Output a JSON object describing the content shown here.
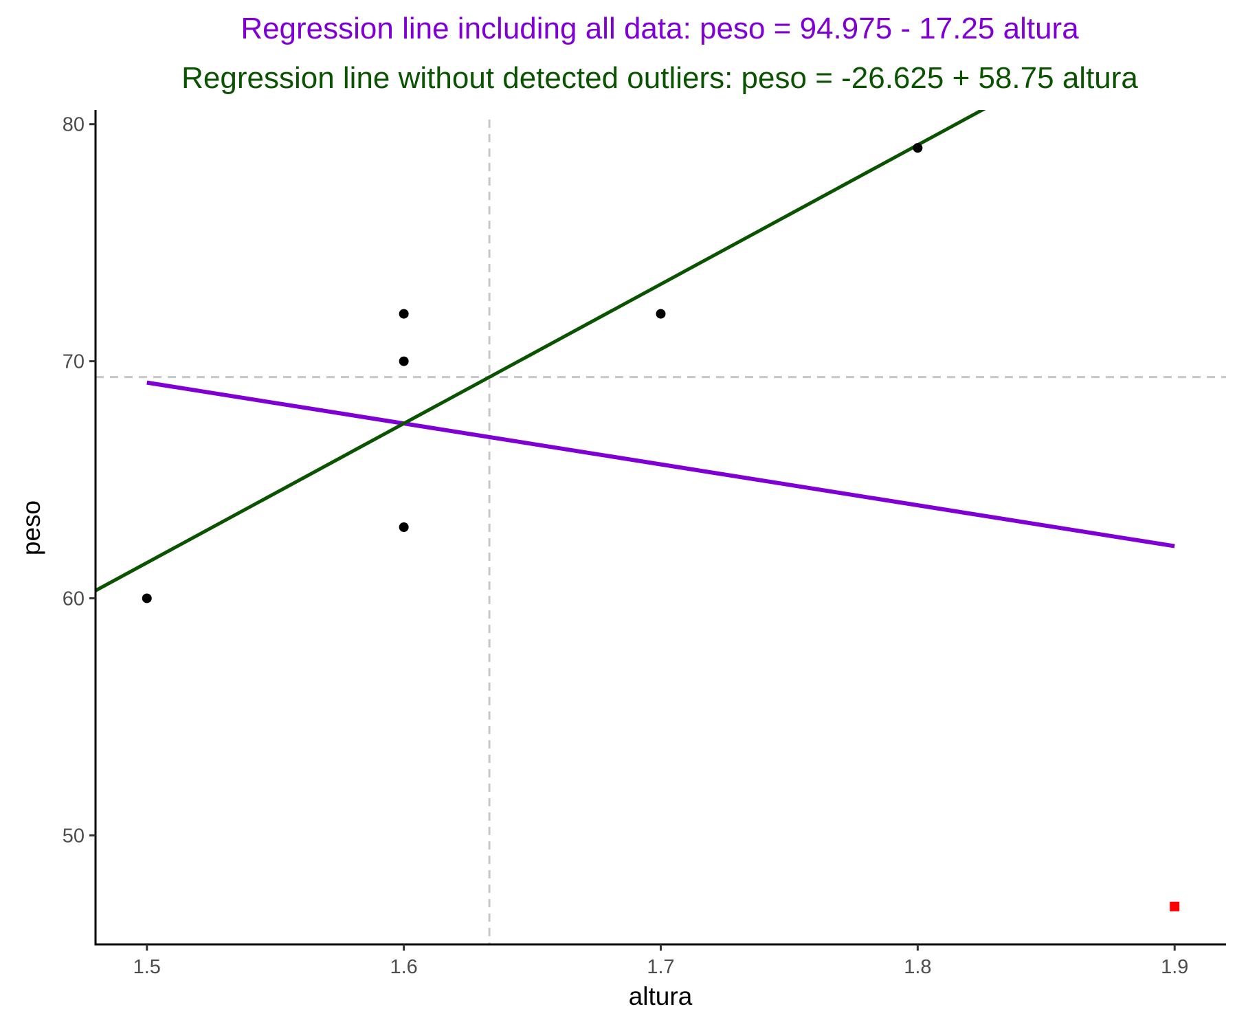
{
  "chart_data": {
    "type": "scatter",
    "title_lines": [
      {
        "text": "Regression line including all data: peso  =  94.975 - 17.25 altura",
        "color": "#8000D4"
      },
      {
        "text": "Regression line without detected outliers: peso  =  -26.625 + 58.75 altura",
        "color": "#0A5300"
      }
    ],
    "xlabel": "altura",
    "ylabel": "peso",
    "xlim": [
      1.48,
      1.92
    ],
    "ylim": [
      45.4,
      80.6
    ],
    "x_ticks": [
      1.5,
      1.6,
      1.7,
      1.8,
      1.9
    ],
    "x_tick_labels": [
      "1.5",
      "1.6",
      "1.7",
      "1.8",
      "1.9"
    ],
    "y_ticks": [
      50,
      60,
      70,
      80
    ],
    "y_tick_labels": [
      "50",
      "60",
      "70",
      "80"
    ],
    "grid": false,
    "points": [
      {
        "x": 1.5,
        "y": 60,
        "outlier": false
      },
      {
        "x": 1.6,
        "y": 72,
        "outlier": false
      },
      {
        "x": 1.6,
        "y": 70,
        "outlier": false
      },
      {
        "x": 1.6,
        "y": 63,
        "outlier": false
      },
      {
        "x": 1.7,
        "y": 72,
        "outlier": false
      },
      {
        "x": 1.8,
        "y": 79,
        "outlier": false
      },
      {
        "x": 1.9,
        "y": 47,
        "outlier": true
      }
    ],
    "point_color": "#000000",
    "outlier_color": "#FF0000",
    "regression_all": {
      "name": "Regression line including all data",
      "intercept": 94.975,
      "slope": -17.25,
      "x_range": [
        1.5,
        1.9
      ],
      "color": "#8000D4"
    },
    "regression_no_outliers": {
      "name": "Regression line without detected outliers",
      "intercept": -26.625,
      "slope": 58.75,
      "x_range": [
        1.48,
        1.92
      ],
      "color": "#0A5300"
    },
    "reference_lines": {
      "vertical_x": 1.6333,
      "horizontal_y": 69.33,
      "color": "#C8C8C8"
    }
  }
}
